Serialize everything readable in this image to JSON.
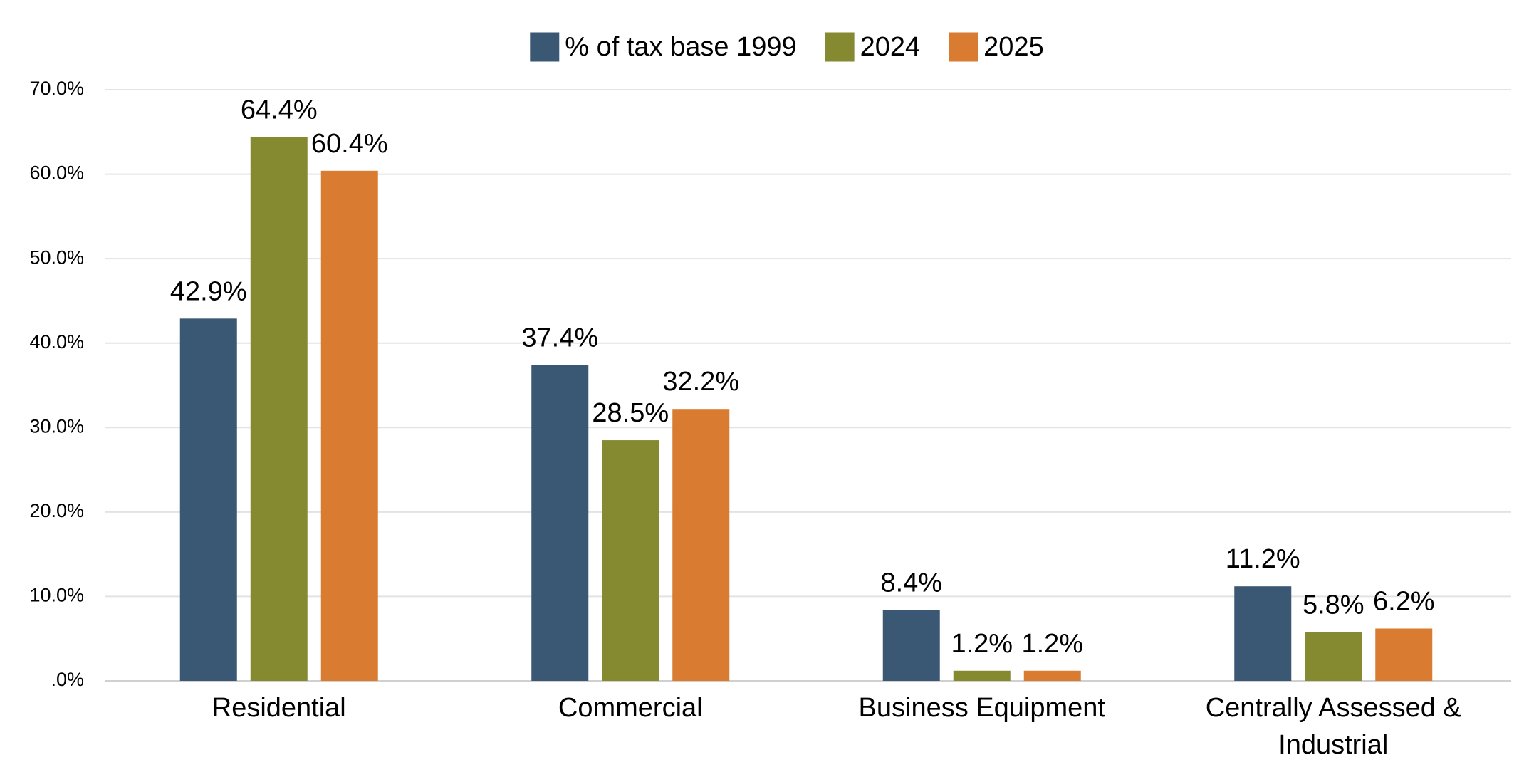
{
  "chart_data": {
    "type": "bar",
    "categories": [
      "Residential",
      "Commercial",
      "Business Equipment",
      "Centrally Assessed & Industrial"
    ],
    "series": [
      {
        "name": "% of tax base 1999",
        "color": "#3a5773",
        "values": [
          42.9,
          37.4,
          8.4,
          11.2
        ],
        "value_labels": [
          "42.9%",
          "37.4%",
          "8.4%",
          "11.2%"
        ]
      },
      {
        "name": "2024",
        "color": "#858a31",
        "values": [
          64.4,
          28.5,
          1.2,
          5.8
        ],
        "value_labels": [
          "64.4%",
          "28.5%",
          "1.2%",
          "5.8%"
        ]
      },
      {
        "name": "2025",
        "color": "#d97b30",
        "values": [
          60.4,
          32.2,
          1.2,
          6.2
        ],
        "value_labels": [
          "60.4%",
          "32.2%",
          "1.2%",
          "6.2%"
        ]
      }
    ],
    "ylim": [
      0,
      70
    ],
    "yticks": [
      {
        "value": 0,
        "label": ".0%"
      },
      {
        "value": 10,
        "label": "10.0%"
      },
      {
        "value": 20,
        "label": "20.0%"
      },
      {
        "value": 30,
        "label": "30.0%"
      },
      {
        "value": 40,
        "label": "40.0%"
      },
      {
        "value": 50,
        "label": "50.0%"
      },
      {
        "value": 60,
        "label": "60.0%"
      },
      {
        "value": 70,
        "label": "70.0%"
      }
    ],
    "grid": true,
    "legend": "top"
  }
}
